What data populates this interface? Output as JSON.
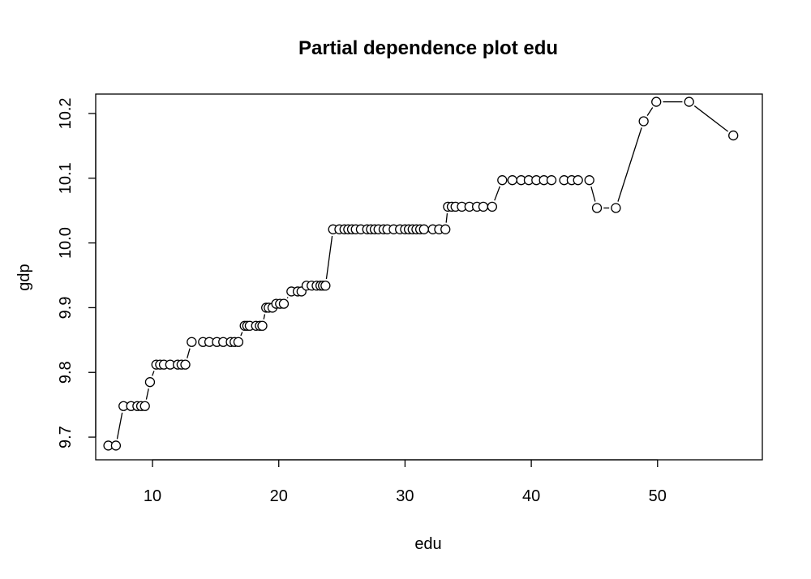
{
  "chart_data": {
    "type": "line",
    "title": "Partial dependence plot edu",
    "xlabel": "edu",
    "ylabel": "gdp",
    "xlim": [
      5.5,
      58.3
    ],
    "ylim": [
      9.665,
      10.23
    ],
    "xticks": [
      10,
      20,
      30,
      40,
      50
    ],
    "xtick_labels": [
      "10",
      "20",
      "30",
      "40",
      "50"
    ],
    "yticks": [
      9.7,
      9.8,
      9.9,
      10.0,
      10.1,
      10.2
    ],
    "ytick_labels": [
      "9.7",
      "9.8",
      "9.9",
      "10.0",
      "10.1",
      "10.2"
    ],
    "line_style": "both points and lines (type='b')",
    "marker": "open circle",
    "grid": false,
    "series": [
      {
        "x": [
          6.5,
          7.1,
          7.7,
          8.3,
          8.8,
          9.1,
          9.4,
          9.8,
          10.3,
          10.6,
          10.9,
          11.4,
          12.0,
          12.3,
          12.6,
          13.1,
          14.0,
          14.5,
          15.1,
          15.6,
          16.2,
          16.5,
          16.8,
          17.3,
          17.5,
          17.7,
          18.2,
          18.5,
          18.7,
          19.0,
          19.2,
          19.5,
          19.8,
          20.1,
          20.4,
          21.0,
          21.5,
          21.8,
          22.2,
          22.6,
          23.0,
          23.3,
          23.5,
          23.7,
          24.3,
          24.8,
          25.2,
          25.5,
          25.8,
          26.1,
          26.5,
          27.0,
          27.3,
          27.6,
          27.9,
          28.3,
          28.6,
          29.1,
          29.6,
          30.0,
          30.3,
          30.6,
          30.9,
          31.2,
          31.5,
          32.2,
          32.7,
          33.2,
          33.4,
          33.7,
          34.0,
          34.5,
          35.1,
          35.7,
          36.2,
          36.9,
          37.7,
          38.5,
          39.2,
          39.8,
          40.4,
          41.0,
          41.6,
          42.6,
          43.2,
          43.7,
          44.6,
          45.2,
          46.7,
          48.9,
          49.9,
          52.5,
          56.0
        ],
        "y": [
          9.687,
          9.687,
          9.748,
          9.748,
          9.748,
          9.748,
          9.748,
          9.785,
          9.812,
          9.812,
          9.812,
          9.812,
          9.812,
          9.812,
          9.812,
          9.847,
          9.847,
          9.847,
          9.847,
          9.847,
          9.847,
          9.847,
          9.847,
          9.872,
          9.872,
          9.872,
          9.872,
          9.872,
          9.872,
          9.9,
          9.9,
          9.9,
          9.906,
          9.906,
          9.906,
          9.925,
          9.925,
          9.925,
          9.934,
          9.934,
          9.934,
          9.934,
          9.934,
          9.934,
          10.021,
          10.021,
          10.021,
          10.021,
          10.021,
          10.021,
          10.021,
          10.021,
          10.021,
          10.021,
          10.021,
          10.021,
          10.021,
          10.021,
          10.021,
          10.021,
          10.021,
          10.021,
          10.021,
          10.021,
          10.021,
          10.021,
          10.021,
          10.021,
          10.056,
          10.056,
          10.056,
          10.056,
          10.056,
          10.056,
          10.056,
          10.056,
          10.097,
          10.097,
          10.097,
          10.097,
          10.097,
          10.097,
          10.097,
          10.097,
          10.097,
          10.097,
          10.097,
          10.054,
          10.054,
          10.188,
          10.218,
          10.218,
          10.166
        ]
      }
    ]
  }
}
